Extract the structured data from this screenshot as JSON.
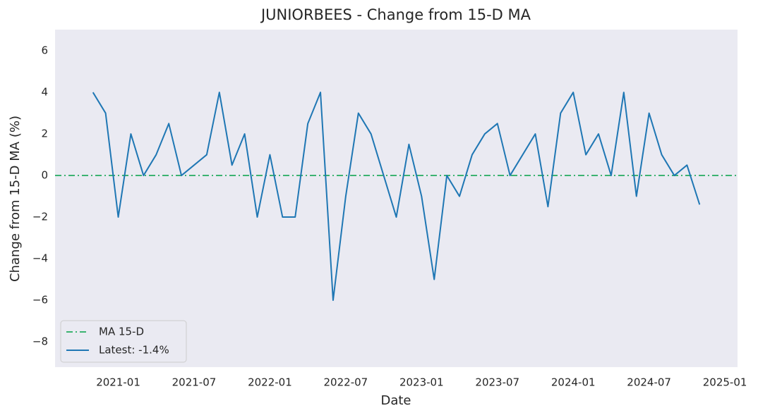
{
  "chart_data": {
    "type": "line",
    "title": "JUNIORBEES - Change from 15-D MA",
    "x_label": "Date",
    "y_label": "Change from 15-D MA (%)",
    "x": [
      "2020-11",
      "2020-12",
      "2021-01",
      "2021-02",
      "2021-03",
      "2021-04",
      "2021-05",
      "2021-06",
      "2021-07",
      "2021-08",
      "2021-09",
      "2021-10",
      "2021-11",
      "2021-12",
      "2022-01",
      "2022-02",
      "2022-03",
      "2022-04",
      "2022-05",
      "2022-06",
      "2022-07",
      "2022-08",
      "2022-09",
      "2022-10",
      "2022-11",
      "2022-12",
      "2023-01",
      "2023-02",
      "2023-03",
      "2023-04",
      "2023-05",
      "2023-06",
      "2023-07",
      "2023-08",
      "2023-09",
      "2023-10",
      "2023-11",
      "2023-12",
      "2024-01",
      "2024-02",
      "2024-03",
      "2024-04",
      "2024-05",
      "2024-06",
      "2024-07",
      "2024-08",
      "2024-09",
      "2024-10",
      "2024-11"
    ],
    "series": [
      {
        "name": "Latest: -1.4%",
        "color": "#1f77b4",
        "values": [
          4,
          3,
          -2,
          2,
          0,
          1,
          2.5,
          0,
          0.5,
          1,
          4,
          0.5,
          2,
          -2,
          1,
          -2,
          -2,
          2.5,
          4,
          -6,
          -1,
          3,
          2,
          0,
          -2,
          1.5,
          -1,
          -5,
          0,
          -1,
          1,
          2,
          2.5,
          0,
          1,
          2,
          -1.5,
          3,
          4,
          1,
          2,
          0,
          4,
          -1,
          3,
          1,
          0,
          0.5,
          -1.4
        ]
      }
    ],
    "reference_line": {
      "name": "MA 15-D",
      "value": 0,
      "color": "#3cb371"
    },
    "xlim": [
      "2020-08",
      "2025-02"
    ],
    "xticks": [
      "2021-01",
      "2021-07",
      "2022-01",
      "2022-07",
      "2023-01",
      "2023-07",
      "2024-01",
      "2024-07",
      "2025-01"
    ],
    "ylim": [
      -9.22,
      7.02
    ],
    "yticks": [
      {
        "value": -8,
        "label": "−8"
      },
      {
        "value": -6,
        "label": "−6"
      },
      {
        "value": -4,
        "label": "−4"
      },
      {
        "value": -2,
        "label": "−2"
      },
      0,
      2,
      4,
      6
    ],
    "legend": "lower left"
  }
}
